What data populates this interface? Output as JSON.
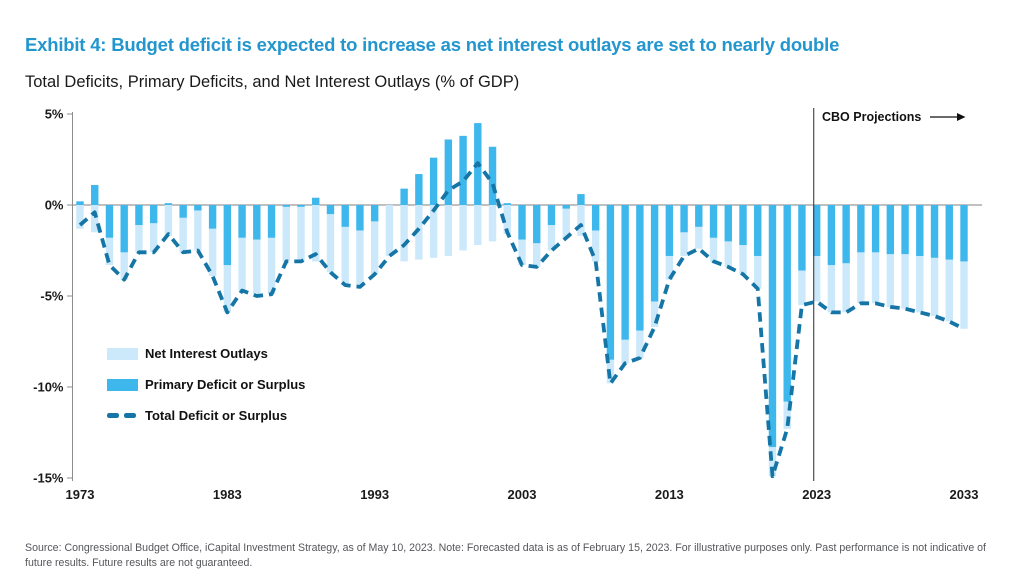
{
  "header": {
    "title": "Exhibit 4: Budget deficit is expected to increase as net interest outlays are set to nearly double",
    "subtitle": "Total Deficits, Primary Deficits, and Net Interest Outlays  (% of GDP)"
  },
  "annotation": {
    "cbo_label": "CBO Projections"
  },
  "legend": [
    {
      "label": "Net Interest Outlays",
      "swatch": "light-blue-fill"
    },
    {
      "label": "Primary Deficit or Surplus",
      "swatch": "blue-fill"
    },
    {
      "label": "Total Deficit or Surplus",
      "swatch": "dashed-line"
    }
  ],
  "footer": {
    "source": "Source: Congressional Budget Office, iCapital Investment Strategy, as of May 10, 2023. Note: Forecasted data is as of  February 15, 2023. For illustrative purposes only. Past performance is not indicative of future results. Future results are not guaranteed."
  },
  "colors": {
    "title_text": "#2396CE",
    "bar_net_interest": "#CBE9FB",
    "bar_primary": "#3DB7EC",
    "line_total": "#1475A6",
    "zero_line": "#9b9b9b",
    "axis_line": "#8c8c8c",
    "divider_line": "#3d3d3d",
    "tick_text": "#1a1a1a",
    "source_text": "#55565a"
  },
  "chart_data": {
    "type": "bar",
    "subtype": "stacked-bars-with-dashed-total-line",
    "title": "Total Deficits, Primary Deficits, and Net Interest Outlays (% of GDP)",
    "xlabel": "",
    "ylabel": "% of GDP",
    "ylim": [
      -15,
      5
    ],
    "grid": false,
    "legend_position": "inside-left",
    "stacking_note": "Primary deficit/surplus bar starts at 0; net interest outlays bar stacks below it (or from 0 when primary is a surplus). Dashed line = total = primary + net interest.",
    "x": [
      1973,
      1974,
      1975,
      1976,
      1977,
      1978,
      1979,
      1980,
      1981,
      1982,
      1983,
      1984,
      1985,
      1986,
      1987,
      1988,
      1989,
      1990,
      1991,
      1992,
      1993,
      1994,
      1995,
      1996,
      1997,
      1998,
      1999,
      2000,
      2001,
      2002,
      2003,
      2004,
      2005,
      2006,
      2007,
      2008,
      2009,
      2010,
      2011,
      2012,
      2013,
      2014,
      2015,
      2016,
      2017,
      2018,
      2019,
      2020,
      2021,
      2022,
      2023,
      2024,
      2025,
      2026,
      2027,
      2028,
      2029,
      2030,
      2031,
      2032,
      2033
    ],
    "series": [
      {
        "name": "Net Interest Outlays",
        "type": "bar",
        "values": [
          -1.3,
          -1.5,
          -1.5,
          -1.5,
          -1.5,
          -1.6,
          -1.7,
          -1.9,
          -2.2,
          -2.6,
          -2.6,
          -2.9,
          -3.1,
          -3.1,
          -3.0,
          -3.0,
          -3.1,
          -3.2,
          -3.2,
          -3.1,
          -2.9,
          -2.8,
          -3.1,
          -3.0,
          -2.9,
          -2.8,
          -2.5,
          -2.2,
          -2.0,
          -1.6,
          -1.4,
          -1.3,
          -1.4,
          -1.6,
          -1.7,
          -1.7,
          -1.3,
          -1.3,
          -1.5,
          -1.4,
          -1.3,
          -1.3,
          -1.2,
          -1.3,
          -1.4,
          -1.6,
          -1.8,
          -1.6,
          -1.5,
          -1.9,
          -2.5,
          -2.6,
          -2.7,
          -2.8,
          -2.8,
          -2.9,
          -3.0,
          -3.1,
          -3.2,
          -3.4,
          -3.7
        ]
      },
      {
        "name": "Primary Deficit or Surplus",
        "type": "bar",
        "values": [
          0.2,
          1.1,
          -1.8,
          -2.6,
          -1.1,
          -1.0,
          0.1,
          -0.7,
          -0.3,
          -1.3,
          -3.3,
          -1.8,
          -1.9,
          -1.8,
          -0.1,
          -0.1,
          0.4,
          -0.5,
          -1.2,
          -1.4,
          -0.9,
          0.0,
          0.9,
          1.7,
          2.6,
          3.6,
          3.8,
          4.5,
          3.2,
          0.1,
          -1.9,
          -2.1,
          -1.1,
          -0.2,
          0.6,
          -1.4,
          -8.5,
          -7.4,
          -6.9,
          -5.3,
          -2.8,
          -1.5,
          -1.2,
          -1.8,
          -2.0,
          -2.2,
          -2.8,
          -13.3,
          -10.8,
          -3.6,
          -2.8,
          -3.3,
          -3.2,
          -2.6,
          -2.6,
          -2.7,
          -2.7,
          -2.8,
          -2.9,
          -3.0,
          -3.1
        ]
      },
      {
        "name": "Total Deficit or Surplus",
        "type": "line",
        "style": "dashed",
        "values": [
          -1.1,
          -0.4,
          -3.3,
          -4.1,
          -2.6,
          -2.6,
          -1.6,
          -2.6,
          -2.5,
          -3.9,
          -5.9,
          -4.7,
          -5.0,
          -4.9,
          -3.1,
          -3.1,
          -2.7,
          -3.7,
          -4.4,
          -4.5,
          -3.8,
          -2.8,
          -2.2,
          -1.3,
          -0.3,
          0.8,
          1.3,
          2.3,
          1.2,
          -1.5,
          -3.3,
          -3.4,
          -2.5,
          -1.8,
          -1.1,
          -3.1,
          -9.8,
          -8.7,
          -8.4,
          -6.7,
          -4.1,
          -2.8,
          -2.4,
          -3.1,
          -3.4,
          -3.8,
          -4.6,
          -14.9,
          -12.3,
          -5.5,
          -5.3,
          -5.9,
          -5.9,
          -5.4,
          -5.4,
          -5.6,
          -5.7,
          -5.9,
          -6.1,
          -6.4,
          -6.8
        ]
      }
    ],
    "yticks": [
      {
        "value": 5,
        "label": "5%"
      },
      {
        "value": 0,
        "label": "0%"
      },
      {
        "value": -5,
        "label": "-5%"
      },
      {
        "value": -10,
        "label": "-10%"
      },
      {
        "value": -15,
        "label": "-15%"
      }
    ],
    "xticks": [
      {
        "value": 1973,
        "label": "1973"
      },
      {
        "value": 1983,
        "label": "1983"
      },
      {
        "value": 1993,
        "label": "1993"
      },
      {
        "value": 2003,
        "label": "2003"
      },
      {
        "value": 2013,
        "label": "2013"
      },
      {
        "value": 2023,
        "label": "2023"
      },
      {
        "value": 2033,
        "label": "2033"
      }
    ],
    "projection_divider_year": 2022.8,
    "projection_label": "CBO Projections"
  }
}
